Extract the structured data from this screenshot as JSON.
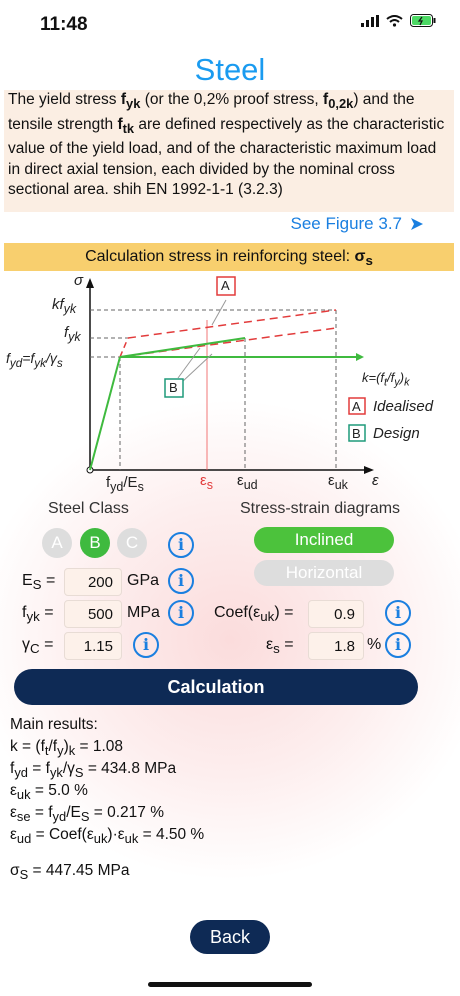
{
  "status": {
    "time": "11:48"
  },
  "page": {
    "title": "Steel"
  },
  "description": {
    "p1": "The yield stress ",
    "fyk": "f",
    "fyk_sub": "yk",
    "p2": " (or the 0,2% proof stress, ",
    "f02": "f",
    "f02_sub": "0,2k",
    "p3": ") and the tensile strength ",
    "ftk": "f",
    "ftk_sub": "tk",
    "p4": " are defined respectively as the characteristic value of the yield load, and of the characteristic maximum load in direct axial tension, each divided by the nominal cross sectional area. shih EN 1992-1-1 (3.2.3)"
  },
  "see_figure": {
    "label": "See Figure 3.7",
    "icon": "arrow-right-icon"
  },
  "banner": {
    "text": "Calculation stress in reinforcing steel: ",
    "symbol": "σ",
    "symbol_sub": "s"
  },
  "diagram": {
    "sigma": "σ",
    "epsilon": "ε",
    "kfyk": "kf",
    "kfyk_sub": "yk",
    "fyk": "f",
    "fyk_sub": "yk",
    "fyd_eq": "f",
    "fyd_sub": "yd",
    "fyd_rest": "=f",
    "fyd_rest_sub": "yk",
    "fyd_tail": "/γ",
    "fyd_tail_sub": "s",
    "fyd_es": "f",
    "fyd_es_sub": "yd",
    "fyd_es_tail": "/E",
    "fyd_es_tail_sub": "s",
    "es": "ε",
    "es_sub": "s",
    "eud": "ε",
    "eud_sub": "ud",
    "euk": "ε",
    "euk_sub": "uk",
    "k_label": "k=(f",
    "k_sub1": "t",
    "k_mid": "/f",
    "k_sub2": "y",
    "k_end": ")",
    "k_sub3": "k",
    "box_a": "A",
    "box_b": "B",
    "legend_a": "Idealised",
    "legend_b": "Design"
  },
  "steel_class": {
    "heading": "Steel Class",
    "options": [
      "A",
      "B",
      "C"
    ],
    "selected": "B"
  },
  "diagrams": {
    "heading": "Stress-strain diagrams",
    "inclined": "Inclined",
    "horizontal": "Horizontal"
  },
  "inputs": {
    "es": {
      "label": "E",
      "sub": "S",
      "eq": " =",
      "value": "200",
      "unit": "GPa"
    },
    "fyk": {
      "label": "f",
      "sub": "yk",
      "eq": " =",
      "value": "500",
      "unit": "MPa"
    },
    "gc": {
      "label": "γ",
      "sub": "C",
      "eq": " =",
      "value": "1.15"
    },
    "coef": {
      "label": "Coef(ε",
      "sub": "uk",
      "tail": ") =",
      "value": "0.9"
    },
    "eps": {
      "label": "ε",
      "sub": "s",
      "eq": " =",
      "value": "1.8",
      "unit": "%"
    }
  },
  "calc_button": "Calculation",
  "results": {
    "heading": "Main results:",
    "k": {
      "a": "k = (f",
      "s1": "t",
      "b": "/f",
      "s2": "y",
      "c": ")",
      "s3": "k",
      "d": " = 1.08"
    },
    "fyd": {
      "a": "f",
      "s1": "yd",
      "b": " = f",
      "s2": "yk",
      "c": "/γ",
      "s3": "S",
      "d": " = 434.8 MPa"
    },
    "euk": {
      "a": "ε",
      "s1": "uk",
      "d": " = 5.0 %"
    },
    "ese": {
      "a": "ε",
      "s1": "se",
      "b": " = f",
      "s2": "yd",
      "c": "/E",
      "s3": "S",
      "d": " = 0.217 %"
    },
    "eud": {
      "a": "ε",
      "s1": "ud",
      "b": " = Coef(ε",
      "s2": "uk",
      "c": ")·ε",
      "s3": "uk",
      "d": " = 4.50 %"
    },
    "sigma": {
      "a": "σ",
      "s1": "S",
      "d": " = 447.45 MPa"
    }
  },
  "back_button": "Back",
  "colors": {
    "accent": "#1a9bf0",
    "navy": "#0e2a55",
    "green": "#3fba3f",
    "red": "#e23b3b",
    "teal": "#1f9a7a"
  }
}
